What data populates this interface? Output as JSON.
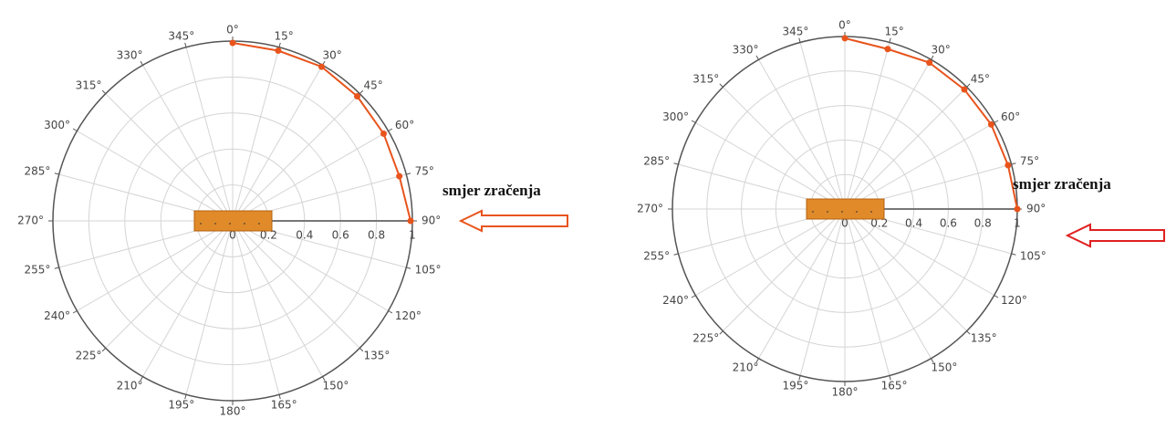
{
  "chart_data": [
    {
      "type": "polar",
      "annotation": "smjer zračenja",
      "color": "#e8541c",
      "theta": [
        0,
        15,
        30,
        45,
        60,
        75,
        90
      ],
      "values": [
        0.99,
        0.98,
        0.99,
        0.98,
        0.97,
        0.96,
        0.99
      ],
      "rlim": [
        0,
        1
      ],
      "rticks": [
        0,
        0.2,
        0.4,
        0.6,
        0.8,
        1
      ],
      "thetaticks": [
        {
          "value": 0,
          "label": "0°"
        },
        {
          "value": 15,
          "label": "15°"
        },
        {
          "value": 30,
          "label": "30°"
        },
        {
          "value": 45,
          "label": "45°"
        },
        {
          "value": 60,
          "label": "60°"
        },
        {
          "value": 75,
          "label": "75°"
        },
        {
          "value": 90,
          "label": "90°"
        },
        {
          "value": 105,
          "label": "105°"
        },
        {
          "value": 120,
          "label": "120°"
        },
        {
          "value": 135,
          "label": "135°"
        },
        {
          "value": 150,
          "label": "150°"
        },
        {
          "value": 165,
          "label": "165°"
        },
        {
          "value": 180,
          "label": "180°"
        },
        {
          "value": 195,
          "label": "195°"
        },
        {
          "value": 210,
          "label": "210°"
        },
        {
          "value": 225,
          "label": "225°"
        },
        {
          "value": 240,
          "label": "240°"
        },
        {
          "value": 255,
          "label": "255°"
        },
        {
          "value": 270,
          "label": "270°"
        },
        {
          "value": 285,
          "label": "285°"
        },
        {
          "value": 300,
          "label": "300°"
        },
        {
          "value": 315,
          "label": "315°"
        },
        {
          "value": 330,
          "label": "330°"
        },
        {
          "value": 345,
          "label": "345°"
        }
      ],
      "grid": true
    },
    {
      "type": "polar",
      "annotation": "smjer zračenja",
      "color": "#e8541c",
      "theta": [
        0,
        15,
        30,
        45,
        60,
        75,
        90
      ],
      "values": [
        0.99,
        0.96,
        0.98,
        0.98,
        0.98,
        0.98,
        1.0
      ],
      "rlim": [
        0,
        1
      ],
      "rticks": [
        0,
        0.2,
        0.4,
        0.6,
        0.8,
        1
      ],
      "thetaticks": [
        {
          "value": 0,
          "label": "0°"
        },
        {
          "value": 15,
          "label": "15°"
        },
        {
          "value": 30,
          "label": "30°"
        },
        {
          "value": 45,
          "label": "45°"
        },
        {
          "value": 60,
          "label": "60°"
        },
        {
          "value": 75,
          "label": "75°"
        },
        {
          "value": 90,
          "label": "90°"
        },
        {
          "value": 105,
          "label": "105°"
        },
        {
          "value": 120,
          "label": "120°"
        },
        {
          "value": 135,
          "label": "135°"
        },
        {
          "value": 150,
          "label": "150°"
        },
        {
          "value": 165,
          "label": "165°"
        },
        {
          "value": 180,
          "label": "180°"
        },
        {
          "value": 195,
          "label": "195°"
        },
        {
          "value": 210,
          "label": "210°"
        },
        {
          "value": 225,
          "label": "225°"
        },
        {
          "value": 240,
          "label": "240°"
        },
        {
          "value": 255,
          "label": "255°"
        },
        {
          "value": 270,
          "label": "270°"
        },
        {
          "value": 285,
          "label": "285°"
        },
        {
          "value": 300,
          "label": "300°"
        },
        {
          "value": 315,
          "label": "315°"
        },
        {
          "value": 330,
          "label": "330°"
        },
        {
          "value": 345,
          "label": "345°"
        }
      ],
      "grid": true
    }
  ]
}
